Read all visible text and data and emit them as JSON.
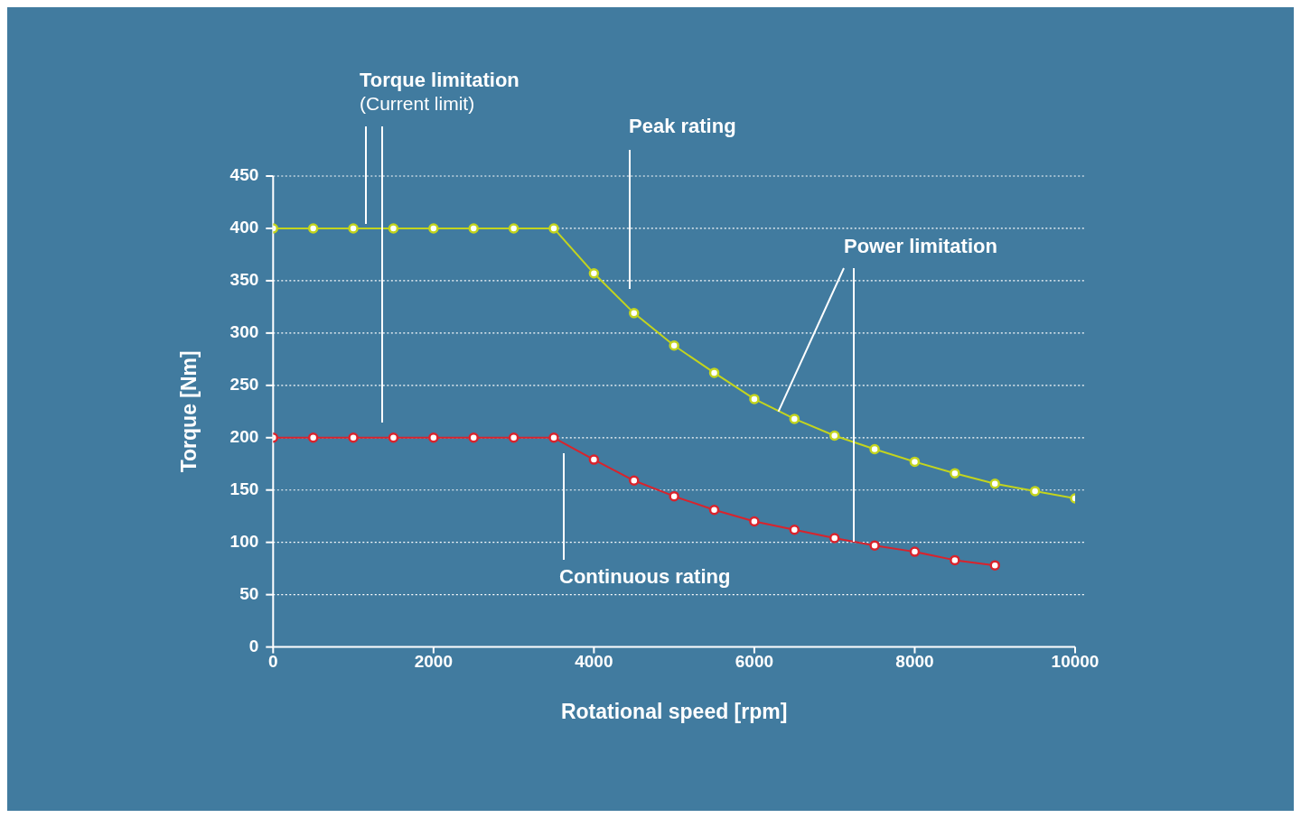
{
  "chart_data": {
    "type": "line",
    "xlabel": "Rotational speed [rpm]",
    "ylabel": "Torque [Nm]",
    "x": [
      0,
      500,
      1000,
      1500,
      2000,
      2500,
      3000,
      3500,
      4000,
      4500,
      5000,
      5500,
      6000,
      6500,
      7000,
      7500,
      8000,
      8500,
      9000,
      9500,
      10000
    ],
    "series": [
      {
        "color": "#c3d41e",
        "values": [
          400,
          400,
          400,
          400,
          400,
          400,
          400,
          400,
          357,
          319,
          288,
          262,
          237,
          218,
          202,
          189,
          177,
          166,
          156,
          149,
          142
        ]
      },
      {
        "color": "#d9232c",
        "values": [
          200,
          200,
          200,
          200,
          200,
          200,
          200,
          200,
          179,
          159,
          144,
          131,
          120,
          112,
          104,
          97,
          91,
          83,
          78,
          null,
          null
        ]
      }
    ],
    "xlim": [
      0,
      10000
    ],
    "xticks": [
      0,
      2000,
      4000,
      6000,
      8000,
      10000
    ],
    "ylim": [
      0,
      450
    ],
    "yticks": [
      0,
      50,
      100,
      150,
      200,
      250,
      300,
      350,
      400,
      450
    ],
    "grid": "y",
    "legend": false,
    "marker": "circle",
    "line_style": "solid",
    "annotations": [
      "Torque limitation",
      "(Current limit)",
      "Peak rating",
      {
        "text": "Power limitation",
        "x": 6300,
        "y": 225
      },
      "Continuous rating"
    ]
  }
}
